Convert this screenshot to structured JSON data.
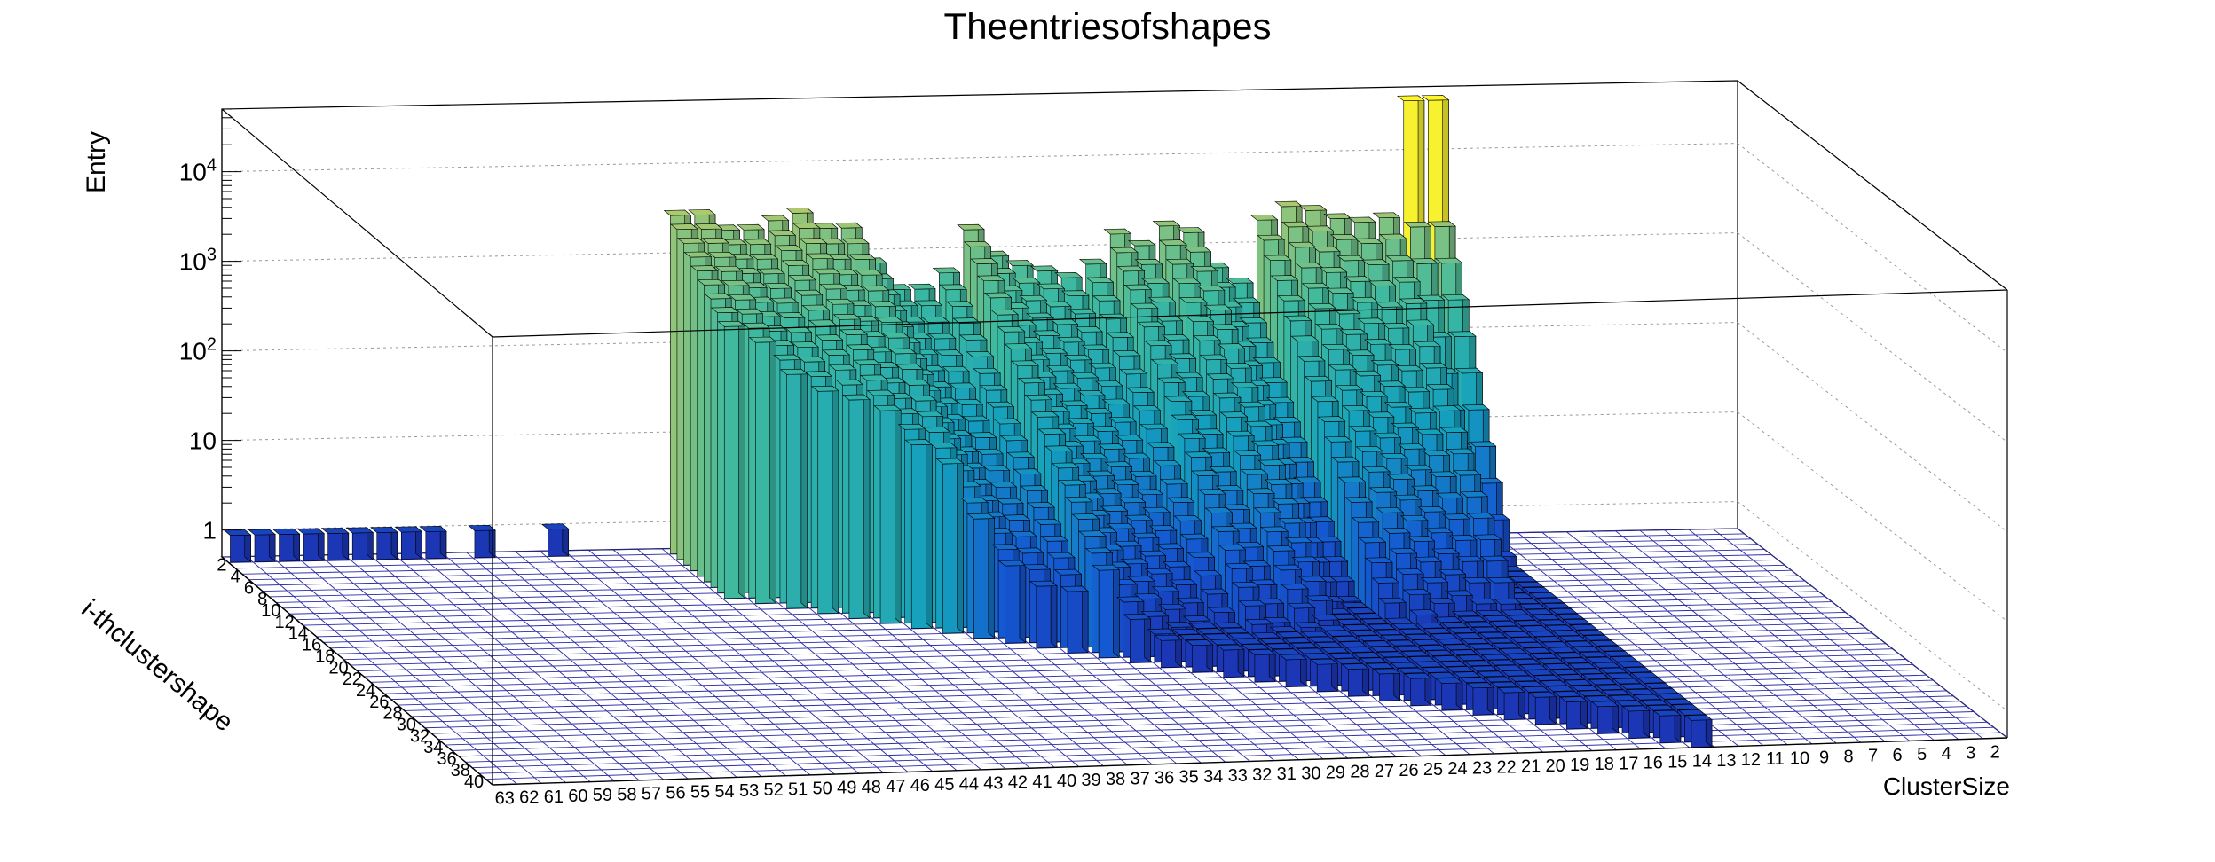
{
  "chart_data": {
    "type": "bar3d",
    "title": "Theentriesofshapes",
    "xlabel": "ClusterSize",
    "ylabel": "i-thclustershape",
    "zlabel": "Entry",
    "zscale": "log",
    "zlim": [
      0.5,
      50000
    ],
    "z_ticks": [
      {
        "value": 1,
        "label": "1"
      },
      {
        "value": 10,
        "label": "10"
      },
      {
        "value": 100,
        "label": "10",
        "exp": "2"
      },
      {
        "value": 1000,
        "label": "10",
        "exp": "3"
      },
      {
        "value": 10000,
        "label": "10",
        "exp": "4"
      }
    ],
    "x_ticks": [
      "63",
      "62",
      "61",
      "60",
      "59",
      "58",
      "57",
      "56",
      "55",
      "54",
      "53",
      "52",
      "51",
      "50",
      "49",
      "48",
      "47",
      "46",
      "45",
      "44",
      "43",
      "42",
      "41",
      "40",
      "39",
      "38",
      "37",
      "36",
      "35",
      "34",
      "33",
      "32",
      "31",
      "30",
      "29",
      "28",
      "27",
      "26",
      "25",
      "24",
      "23",
      "22",
      "21",
      "20",
      "19",
      "18",
      "17",
      "16",
      "15",
      "14",
      "13",
      "12",
      "11",
      "10",
      "9",
      "8",
      "7",
      "6",
      "5",
      "4",
      "3",
      "2"
    ],
    "y_ticks": [
      "2",
      "4",
      "6",
      "8",
      "10",
      "12",
      "14",
      "16",
      "18",
      "20",
      "22",
      "24",
      "26",
      "28",
      "30",
      "32",
      "34",
      "36",
      "38",
      "40"
    ],
    "grid": true,
    "colormap": "viridis-like (blue to yellow)",
    "back_row_values": {
      "14": 40000,
      "15": 40000,
      "16": 2000,
      "17": 1800,
      "18": 2000,
      "19": 2500,
      "20": 2800,
      "21": 2000,
      "22": 400,
      "23": 600,
      "24": 1500,
      "25": 1800,
      "26": 1100,
      "27": 1500,
      "28": 700,
      "29": 500,
      "30": 600,
      "31": 700,
      "32": 900,
      "33": 1800,
      "34": 600,
      "35": 400,
      "36": 400,
      "37": 800,
      "38": 2000,
      "39": 2000,
      "40": 3000,
      "41": 2500,
      "42": 2000,
      "43": 2000,
      "44": 3000,
      "45": 3000,
      "50": 1,
      "53": 1,
      "55": 1,
      "56": 1,
      "57": 1,
      "58": 1,
      "59": 1,
      "60": 1,
      "61": 1,
      "62": 1,
      "63": 1
    }
  }
}
